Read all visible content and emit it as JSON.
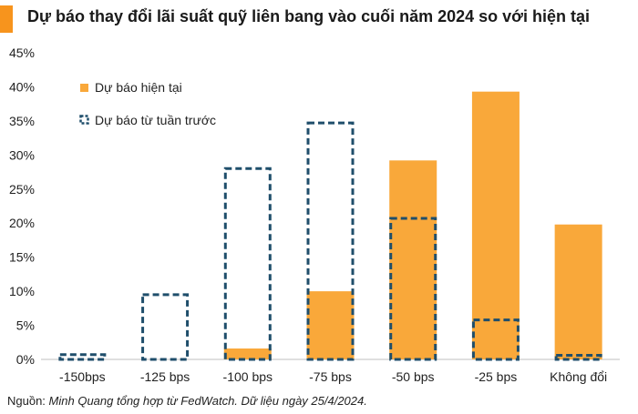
{
  "title": "Dự báo thay đổi lãi suất quỹ liên bang vào cuối năm 2024 so với hiện tại",
  "source": {
    "prefix": "Nguồn: ",
    "body": "Minh Quang tổng hợp từ FedWatch. Dữ liệu ngày 25/4/2024."
  },
  "colors": {
    "accent": "#f7941d",
    "current_fill": "#f9a83a",
    "previous_stroke": "#1f4e6b",
    "axis": "#bfbfbf"
  },
  "chart_data": {
    "type": "bar",
    "categories": [
      "-150bps",
      "-125 bps",
      "-100 bps",
      "-75 bps",
      "-50 bps",
      "-25 bps",
      "Không đổi"
    ],
    "series": [
      {
        "name": "Dự báo hiện tại",
        "style": "solid",
        "values": [
          0,
          0,
          1.6,
          10.0,
          29.2,
          39.3,
          19.8
        ]
      },
      {
        "name": "Dự báo từ tuần trước",
        "style": "dashed-outline",
        "values": [
          0.7,
          9.5,
          28.0,
          34.7,
          20.7,
          5.8,
          0.6
        ]
      }
    ],
    "ylim": [
      0,
      45
    ],
    "yticks": [
      0,
      5,
      10,
      15,
      20,
      25,
      30,
      35,
      40,
      45
    ],
    "ytick_suffix": "%",
    "legend_position": "top-left",
    "grid": false
  }
}
